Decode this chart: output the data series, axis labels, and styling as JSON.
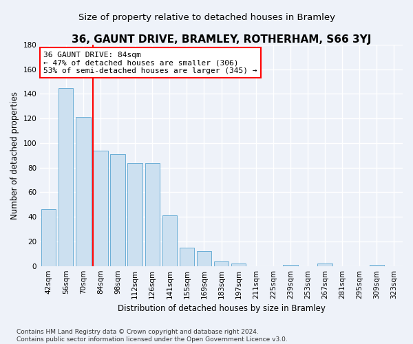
{
  "title": "36, GAUNT DRIVE, BRAMLEY, ROTHERHAM, S66 3YJ",
  "subtitle": "Size of property relative to detached houses in Bramley",
  "xlabel": "Distribution of detached houses by size in Bramley",
  "ylabel": "Number of detached properties",
  "categories": [
    "42sqm",
    "56sqm",
    "70sqm",
    "84sqm",
    "98sqm",
    "112sqm",
    "126sqm",
    "141sqm",
    "155sqm",
    "169sqm",
    "183sqm",
    "197sqm",
    "211sqm",
    "225sqm",
    "239sqm",
    "253sqm",
    "267sqm",
    "281sqm",
    "295sqm",
    "309sqm",
    "323sqm"
  ],
  "values": [
    46,
    145,
    121,
    94,
    91,
    84,
    84,
    41,
    15,
    12,
    4,
    2,
    0,
    0,
    1,
    0,
    2,
    0,
    0,
    1,
    0
  ],
  "bar_color": "#cce0f0",
  "bar_edge_color": "#6aaed6",
  "red_line_index": 3,
  "annotation_line1": "36 GAUNT DRIVE: 84sqm",
  "annotation_line2": "← 47% of detached houses are smaller (306)",
  "annotation_line3": "53% of semi-detached houses are larger (345) →",
  "annotation_box_color": "white",
  "annotation_box_edge": "red",
  "ylim": [
    0,
    180
  ],
  "yticks": [
    0,
    20,
    40,
    60,
    80,
    100,
    120,
    140,
    160,
    180
  ],
  "footnote_line1": "Contains HM Land Registry data © Crown copyright and database right 2024.",
  "footnote_line2": "Contains public sector information licensed under the Open Government Licence v3.0.",
  "background_color": "#eef2f9",
  "grid_color": "#ffffff",
  "title_fontsize": 11,
  "subtitle_fontsize": 9.5,
  "label_fontsize": 8.5,
  "tick_fontsize": 7.5,
  "annotation_fontsize": 8,
  "footnote_fontsize": 6.5
}
